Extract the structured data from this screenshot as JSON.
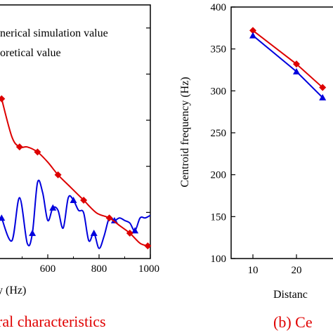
{
  "chart_data": [
    {
      "type": "line",
      "title": "",
      "xlabel": "y (Hz)",
      "ylabel": "",
      "xlim": [
        400,
        1000
      ],
      "x_ticks": [
        "600",
        "800",
        "1000"
      ],
      "legend": {
        "placement": "top-left",
        "entries": [
          "nerical simulation value",
          "oretical value"
        ]
      },
      "caption": "ral characteristics",
      "grid": false,
      "series": [
        {
          "color": "#0000dd",
          "marker": "triangle",
          "x": [
            420,
            460,
            490,
            520,
            540,
            560,
            580,
            600,
            620,
            640,
            660,
            680,
            700,
            720,
            740,
            760,
            780,
            800,
            820,
            840,
            860,
            880,
            900,
            920,
            940,
            960,
            980,
            1000
          ],
          "y": [
            0.16,
            0.07,
            0.24,
            0.06,
            0.1,
            0.3,
            0.26,
            0.15,
            0.2,
            0.19,
            0.12,
            0.24,
            0.23,
            0.19,
            0.18,
            0.07,
            0.1,
            0.04,
            0.09,
            0.16,
            0.15,
            0.16,
            0.15,
            0.14,
            0.11,
            0.16,
            0.16,
            0.17
          ]
        },
        {
          "color": "#dd0000",
          "marker": "diamond",
          "x": [
            420,
            460,
            490,
            520,
            560,
            600,
            640,
            690,
            740,
            790,
            840,
            880,
            920,
            960,
            990
          ],
          "y": [
            0.63,
            0.48,
            0.44,
            0.44,
            0.42,
            0.38,
            0.33,
            0.28,
            0.23,
            0.18,
            0.16,
            0.13,
            0.1,
            0.06,
            0.05
          ]
        }
      ]
    },
    {
      "type": "line",
      "title": "",
      "xlabel": "Distanc",
      "ylabel": "Centroid frequency (Hz)",
      "ylim": [
        100,
        400
      ],
      "y_ticks": [
        "100",
        "150",
        "200",
        "250",
        "300",
        "350",
        "400"
      ],
      "x_ticks": [
        "10",
        "20"
      ],
      "caption": "(b) Ce",
      "grid": false,
      "series": [
        {
          "color": "#dd0000",
          "marker": "diamond",
          "x": [
            10,
            20,
            26
          ],
          "y": [
            372,
            332,
            304
          ]
        },
        {
          "color": "#0000dd",
          "marker": "triangle",
          "x": [
            10,
            20,
            26
          ],
          "y": [
            366,
            323,
            292
          ]
        }
      ]
    }
  ]
}
